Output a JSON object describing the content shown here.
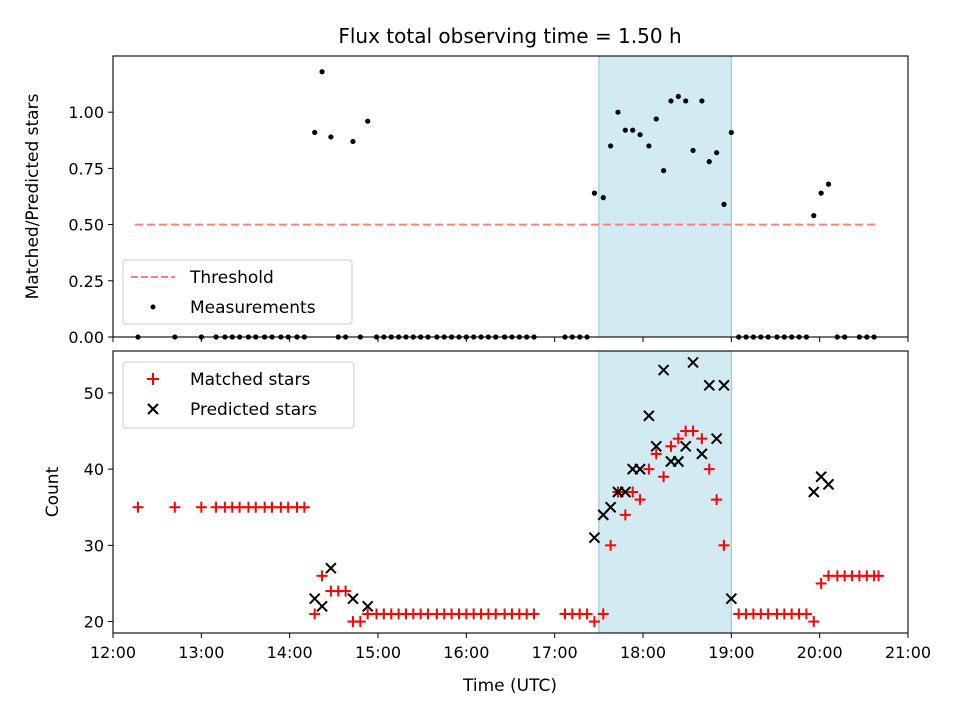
{
  "title": "Flux total observing time = 1.50 h",
  "colors": {
    "threshold": "#ff7f7f",
    "measurement": "#000000",
    "matched": "#ff0000",
    "predicted": "#000000",
    "highlight": "#add8e6"
  },
  "chart_data": [
    {
      "type": "scatter",
      "ylabel": "Matched/Predicted stars",
      "xlim": [
        "12:00",
        "21:00"
      ],
      "ylim": [
        0,
        1.25
      ],
      "yticks": [
        "0.00",
        "0.25",
        "0.50",
        "0.75",
        "1.00"
      ],
      "highlight_span": [
        "17:30",
        "19:00"
      ],
      "legend_position": "lower-left",
      "grid": false,
      "legend": {
        "threshold": "Threshold",
        "measurements": "Measurements"
      },
      "threshold": {
        "name": "Threshold",
        "value": 0.5,
        "x_range": [
          "12:15",
          "20:40"
        ]
      },
      "series": [
        {
          "name": "Measurements",
          "points": [
            [
              "12:17",
              0
            ],
            [
              "12:42",
              0
            ],
            [
              "13:00",
              0
            ],
            [
              "13:10",
              0
            ],
            [
              "13:16",
              0
            ],
            [
              "13:21",
              0
            ],
            [
              "13:26",
              0
            ],
            [
              "13:32",
              0
            ],
            [
              "13:37",
              0
            ],
            [
              "13:43",
              0
            ],
            [
              "13:48",
              0
            ],
            [
              "13:54",
              0
            ],
            [
              "13:59",
              0
            ],
            [
              "14:05",
              0
            ],
            [
              "14:10",
              0
            ],
            [
              "14:17",
              0.91
            ],
            [
              "14:22",
              1.18
            ],
            [
              "14:28",
              0.89
            ],
            [
              "14:33",
              0
            ],
            [
              "14:38",
              0
            ],
            [
              "14:43",
              0.87
            ],
            [
              "14:48",
              0
            ],
            [
              "14:53",
              0.96
            ],
            [
              "14:59",
              0
            ],
            [
              "15:04",
              0
            ],
            [
              "15:09",
              0
            ],
            [
              "15:14",
              0
            ],
            [
              "15:19",
              0
            ],
            [
              "15:24",
              0
            ],
            [
              "15:29",
              0
            ],
            [
              "15:34",
              0
            ],
            [
              "15:40",
              0
            ],
            [
              "15:45",
              0
            ],
            [
              "15:50",
              0
            ],
            [
              "15:55",
              0
            ],
            [
              "16:00",
              0
            ],
            [
              "16:05",
              0
            ],
            [
              "16:10",
              0
            ],
            [
              "16:15",
              0
            ],
            [
              "16:20",
              0
            ],
            [
              "16:26",
              0
            ],
            [
              "16:31",
              0
            ],
            [
              "16:36",
              0
            ],
            [
              "16:41",
              0
            ],
            [
              "16:46",
              0
            ],
            [
              "17:07",
              0
            ],
            [
              "17:12",
              0
            ],
            [
              "17:17",
              0
            ],
            [
              "17:22",
              0
            ],
            [
              "17:27",
              0.64
            ],
            [
              "17:33",
              0.62
            ],
            [
              "17:38",
              0.85
            ],
            [
              "17:43",
              1.0
            ],
            [
              "17:48",
              0.92
            ],
            [
              "17:53",
              0.92
            ],
            [
              "17:58",
              0.9
            ],
            [
              "18:04",
              0.85
            ],
            [
              "18:09",
              0.97
            ],
            [
              "18:14",
              0.74
            ],
            [
              "18:19",
              1.05
            ],
            [
              "18:24",
              1.07
            ],
            [
              "18:29",
              1.05
            ],
            [
              "18:34",
              0.83
            ],
            [
              "18:40",
              1.05
            ],
            [
              "18:45",
              0.78
            ],
            [
              "18:50",
              0.82
            ],
            [
              "18:55",
              0.59
            ],
            [
              "19:00",
              0.91
            ],
            [
              "19:05",
              0
            ],
            [
              "19:10",
              0
            ],
            [
              "19:15",
              0
            ],
            [
              "19:20",
              0
            ],
            [
              "19:25",
              0
            ],
            [
              "19:31",
              0
            ],
            [
              "19:36",
              0
            ],
            [
              "19:41",
              0
            ],
            [
              "19:46",
              0
            ],
            [
              "19:51",
              0
            ],
            [
              "19:56",
              0.54
            ],
            [
              "20:01",
              0.64
            ],
            [
              "20:06",
              0.68
            ],
            [
              "20:12",
              0
            ],
            [
              "20:17",
              0
            ],
            [
              "20:27",
              0
            ],
            [
              "20:32",
              0
            ],
            [
              "20:37",
              0
            ]
          ]
        }
      ]
    },
    {
      "type": "scatter",
      "xlabel": "Time (UTC)",
      "ylabel": "Count",
      "xlim": [
        "12:00",
        "21:00"
      ],
      "ylim": [
        18.5,
        55.5
      ],
      "xticks": [
        "12:00",
        "13:00",
        "14:00",
        "15:00",
        "16:00",
        "17:00",
        "18:00",
        "19:00",
        "20:00",
        "21:00"
      ],
      "yticks": [
        "20",
        "30",
        "40",
        "50"
      ],
      "highlight_span": [
        "17:30",
        "19:00"
      ],
      "legend_position": "upper-left",
      "grid": false,
      "legend": {
        "matched": "Matched stars",
        "predicted": "Predicted stars"
      },
      "series": [
        {
          "name": "Matched stars",
          "marker": "plus",
          "points": [
            [
              "12:17",
              35
            ],
            [
              "12:42",
              35
            ],
            [
              "13:00",
              35
            ],
            [
              "13:10",
              35
            ],
            [
              "13:16",
              35
            ],
            [
              "13:21",
              35
            ],
            [
              "13:26",
              35
            ],
            [
              "13:32",
              35
            ],
            [
              "13:37",
              35
            ],
            [
              "13:43",
              35
            ],
            [
              "13:48",
              35
            ],
            [
              "13:54",
              35
            ],
            [
              "13:59",
              35
            ],
            [
              "14:05",
              35
            ],
            [
              "14:10",
              35
            ],
            [
              "14:17",
              21
            ],
            [
              "14:22",
              26
            ],
            [
              "14:28",
              24
            ],
            [
              "14:33",
              24
            ],
            [
              "14:38",
              24
            ],
            [
              "14:43",
              20
            ],
            [
              "14:48",
              20
            ],
            [
              "14:53",
              21
            ],
            [
              "14:59",
              21
            ],
            [
              "15:04",
              21
            ],
            [
              "15:09",
              21
            ],
            [
              "15:14",
              21
            ],
            [
              "15:19",
              21
            ],
            [
              "15:24",
              21
            ],
            [
              "15:29",
              21
            ],
            [
              "15:34",
              21
            ],
            [
              "15:40",
              21
            ],
            [
              "15:45",
              21
            ],
            [
              "15:50",
              21
            ],
            [
              "15:55",
              21
            ],
            [
              "16:00",
              21
            ],
            [
              "16:05",
              21
            ],
            [
              "16:10",
              21
            ],
            [
              "16:15",
              21
            ],
            [
              "16:20",
              21
            ],
            [
              "16:26",
              21
            ],
            [
              "16:31",
              21
            ],
            [
              "16:36",
              21
            ],
            [
              "16:41",
              21
            ],
            [
              "16:46",
              21
            ],
            [
              "17:07",
              21
            ],
            [
              "17:12",
              21
            ],
            [
              "17:17",
              21
            ],
            [
              "17:22",
              21
            ],
            [
              "17:27",
              20
            ],
            [
              "17:33",
              21
            ],
            [
              "17:38",
              30
            ],
            [
              "17:43",
              37
            ],
            [
              "17:48",
              34
            ],
            [
              "17:53",
              37
            ],
            [
              "17:58",
              36
            ],
            [
              "18:04",
              40
            ],
            [
              "18:09",
              42
            ],
            [
              "18:14",
              39
            ],
            [
              "18:19",
              43
            ],
            [
              "18:24",
              44
            ],
            [
              "18:29",
              45
            ],
            [
              "18:34",
              45
            ],
            [
              "18:40",
              44
            ],
            [
              "18:45",
              40
            ],
            [
              "18:50",
              36
            ],
            [
              "18:55",
              30
            ],
            [
              "19:05",
              21
            ],
            [
              "19:10",
              21
            ],
            [
              "19:15",
              21
            ],
            [
              "19:20",
              21
            ],
            [
              "19:25",
              21
            ],
            [
              "19:31",
              21
            ],
            [
              "19:36",
              21
            ],
            [
              "19:41",
              21
            ],
            [
              "19:46",
              21
            ],
            [
              "19:51",
              21
            ],
            [
              "19:56",
              20
            ],
            [
              "20:01",
              25
            ],
            [
              "20:06",
              26
            ],
            [
              "20:12",
              26
            ],
            [
              "20:17",
              26
            ],
            [
              "20:22",
              26
            ],
            [
              "20:27",
              26
            ],
            [
              "20:32",
              26
            ],
            [
              "20:37",
              26
            ],
            [
              "20:40",
              26
            ]
          ]
        },
        {
          "name": "Predicted stars",
          "marker": "x",
          "points": [
            [
              "14:17",
              23
            ],
            [
              "14:22",
              22
            ],
            [
              "14:28",
              27
            ],
            [
              "14:43",
              23
            ],
            [
              "14:53",
              22
            ],
            [
              "17:27",
              31
            ],
            [
              "17:33",
              34
            ],
            [
              "17:38",
              35
            ],
            [
              "17:43",
              37
            ],
            [
              "17:48",
              37
            ],
            [
              "17:53",
              40
            ],
            [
              "17:58",
              40
            ],
            [
              "18:04",
              47
            ],
            [
              "18:09",
              43
            ],
            [
              "18:14",
              53
            ],
            [
              "18:19",
              41
            ],
            [
              "18:24",
              41
            ],
            [
              "18:29",
              43
            ],
            [
              "18:34",
              54
            ],
            [
              "18:40",
              42
            ],
            [
              "18:45",
              51
            ],
            [
              "18:50",
              44
            ],
            [
              "18:55",
              51
            ],
            [
              "19:00",
              23
            ],
            [
              "19:56",
              37
            ],
            [
              "20:01",
              39
            ],
            [
              "20:06",
              38
            ]
          ]
        }
      ]
    }
  ]
}
